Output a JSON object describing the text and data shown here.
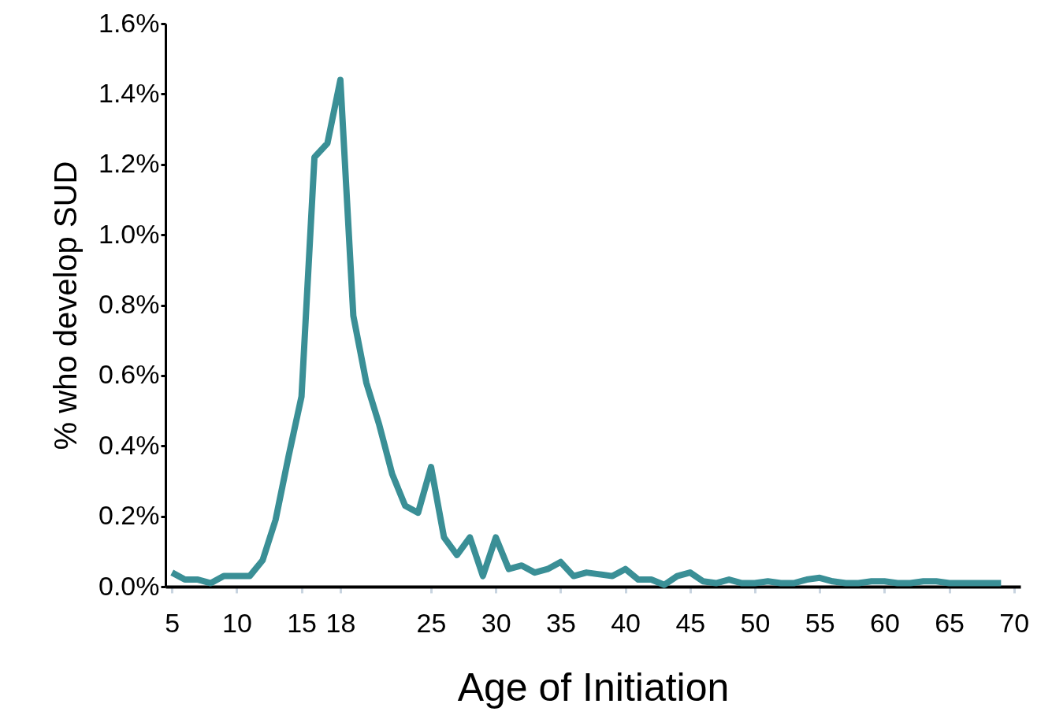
{
  "chart_data": {
    "type": "line",
    "xlabel": "Age of Initiation",
    "ylabel": "% who develop SUD",
    "x": [
      5,
      6,
      7,
      8,
      9,
      10,
      11,
      12,
      13,
      14,
      15,
      16,
      17,
      18,
      19,
      20,
      21,
      22,
      23,
      24,
      25,
      26,
      27,
      28,
      29,
      30,
      31,
      32,
      33,
      34,
      35,
      36,
      37,
      38,
      39,
      40,
      41,
      42,
      43,
      44,
      45,
      46,
      47,
      48,
      49,
      50,
      51,
      52,
      53,
      54,
      55,
      56,
      57,
      58,
      59,
      60,
      61,
      62,
      63,
      64,
      65,
      66,
      67,
      68,
      69
    ],
    "series": [
      {
        "color": "#3a8f96",
        "values": [
          0.04,
          0.02,
          0.02,
          0.01,
          0.03,
          0.03,
          0.03,
          0.075,
          0.19,
          0.37,
          0.54,
          1.22,
          1.26,
          1.44,
          0.77,
          0.58,
          0.46,
          0.32,
          0.23,
          0.21,
          0.34,
          0.14,
          0.09,
          0.14,
          0.03,
          0.14,
          0.05,
          0.06,
          0.04,
          0.05,
          0.07,
          0.03,
          0.04,
          0.035,
          0.03,
          0.05,
          0.02,
          0.02,
          0.005,
          0.03,
          0.04,
          0.015,
          0.01,
          0.02,
          0.01,
          0.01,
          0.015,
          0.01,
          0.01,
          0.02,
          0.025,
          0.015,
          0.01,
          0.01,
          0.015,
          0.015,
          0.01,
          0.01,
          0.015,
          0.015,
          0.01,
          0.01,
          0.01,
          0.01,
          0.01
        ]
      }
    ],
    "xlim": [
      4.5,
      70.5
    ],
    "xticks": [
      5,
      10,
      15,
      18,
      25,
      30,
      35,
      40,
      45,
      50,
      55,
      60,
      65,
      70
    ],
    "ylim": [
      0,
      1.6
    ],
    "yticks": [
      {
        "value": 0,
        "label": "0.0%"
      },
      {
        "value": 0.2,
        "label": "0.2%"
      },
      {
        "value": 0.4,
        "label": "0.4%"
      },
      {
        "value": 0.6,
        "label": "0.6%"
      },
      {
        "value": 0.8,
        "label": "0.8%"
      },
      {
        "value": 1.0,
        "label": "1.0%"
      },
      {
        "value": 1.2,
        "label": "1.2%"
      },
      {
        "value": 1.4,
        "label": "1.4%"
      },
      {
        "value": 1.6,
        "label": "1.6%"
      }
    ],
    "grid": false,
    "legend": false,
    "marker": "none",
    "line_style": "solid"
  }
}
